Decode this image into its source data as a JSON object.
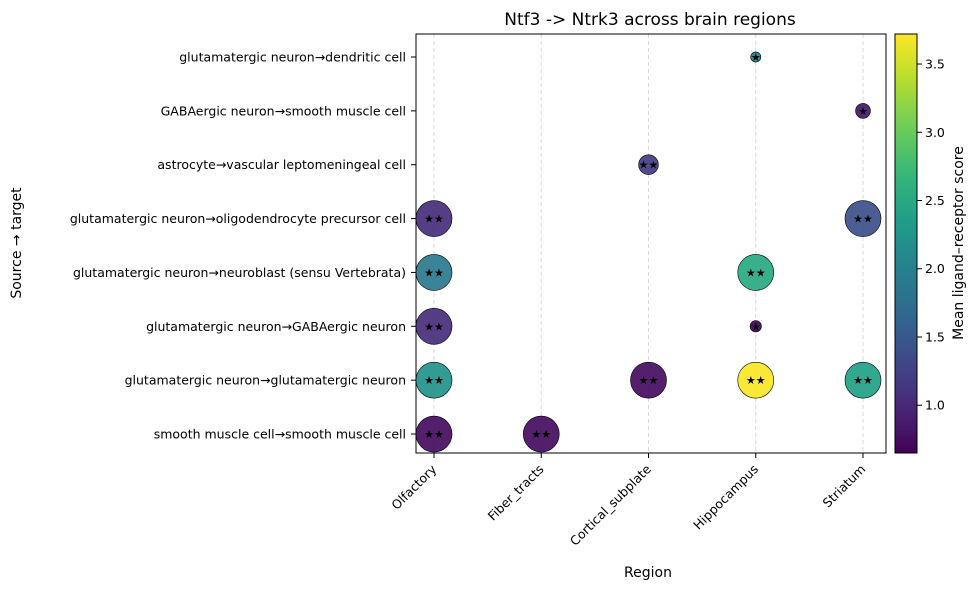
{
  "chart_data": {
    "type": "scatter",
    "title": "Ntf3 -> Ntrk3 across brain regions",
    "xlabel": "Region",
    "ylabel": "Source → target",
    "x_categories": [
      "Olfactory",
      "Fiber_tracts",
      "Cortical_subplate",
      "Hippocampus",
      "Striatum"
    ],
    "y_categories": [
      "smooth muscle cell→smooth muscle cell",
      "glutamatergic neuron→glutamatergic neuron",
      "glutamatergic neuron→GABAergic neuron",
      "glutamatergic neuron→neuroblast (sensu Vertebrata)",
      "glutamatergic neuron→oligodendrocyte precursor cell",
      "astrocyte→vascular leptomeningeal cell",
      "GABAergic neuron→smooth muscle cell",
      "glutamatergic neuron→dendritic cell"
    ],
    "points": [
      {
        "x": "Olfactory",
        "y": "smooth muscle cell→smooth muscle cell",
        "score": 0.75,
        "size": 1.0,
        "label": "★★"
      },
      {
        "x": "Fiber_tracts",
        "y": "smooth muscle cell→smooth muscle cell",
        "score": 0.75,
        "size": 1.0,
        "label": "★★"
      },
      {
        "x": "Olfactory",
        "y": "glutamatergic neuron→glutamatergic neuron",
        "score": 2.2,
        "size": 1.0,
        "label": "★★"
      },
      {
        "x": "Cortical_subplate",
        "y": "glutamatergic neuron→glutamatergic neuron",
        "score": 0.75,
        "size": 1.0,
        "label": "★★"
      },
      {
        "x": "Hippocampus",
        "y": "glutamatergic neuron→glutamatergic neuron",
        "score": 3.7,
        "size": 1.0,
        "label": "★★"
      },
      {
        "x": "Striatum",
        "y": "glutamatergic neuron→glutamatergic neuron",
        "score": 2.4,
        "size": 1.0,
        "label": "★★"
      },
      {
        "x": "Olfactory",
        "y": "glutamatergic neuron→GABAergic neuron",
        "score": 1.05,
        "size": 1.0,
        "label": "★★"
      },
      {
        "x": "Hippocampus",
        "y": "glutamatergic neuron→GABAergic neuron",
        "score": 0.65,
        "size": 0.1,
        "label": "★"
      },
      {
        "x": "Olfactory",
        "y": "glutamatergic neuron→neuroblast (sensu Vertebrata)",
        "score": 1.9,
        "size": 1.0,
        "label": "★★"
      },
      {
        "x": "Hippocampus",
        "y": "glutamatergic neuron→neuroblast (sensu Vertebrata)",
        "score": 2.5,
        "size": 1.0,
        "label": "★★"
      },
      {
        "x": "Olfactory",
        "y": "glutamatergic neuron→oligodendrocyte precursor cell",
        "score": 1.05,
        "size": 1.0,
        "label": "★★"
      },
      {
        "x": "Striatum",
        "y": "glutamatergic neuron→oligodendrocyte precursor cell",
        "score": 1.4,
        "size": 1.0,
        "label": "★★"
      },
      {
        "x": "Cortical_subplate",
        "y": "astrocyte→vascular leptomeningeal cell",
        "score": 1.2,
        "size": 0.3,
        "label": "★★"
      },
      {
        "x": "Striatum",
        "y": "GABAergic neuron→smooth muscle cell",
        "score": 0.85,
        "size": 0.17,
        "label": "★"
      },
      {
        "x": "Hippocampus",
        "y": "glutamatergic neuron→dendritic cell",
        "score": 2.0,
        "size": 0.08,
        "label": "★"
      }
    ],
    "colorbar": {
      "label": "Mean ligand–receptor score",
      "range": [
        0.65,
        3.72
      ],
      "ticks": [
        1.0,
        1.5,
        2.0,
        2.5,
        3.0,
        3.5
      ],
      "tick_labels": [
        "1.0",
        "1.5",
        "2.0",
        "2.5",
        "3.0",
        "3.5"
      ],
      "colormap": "viridis"
    },
    "grid": "vertical dashed",
    "legend": "none"
  }
}
